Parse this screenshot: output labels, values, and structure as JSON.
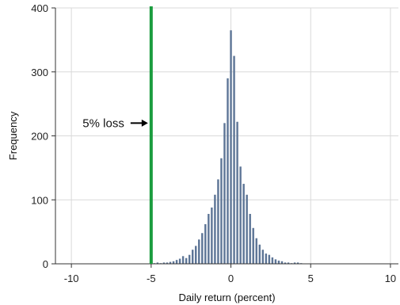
{
  "chart_data": {
    "type": "bar",
    "xlabel": "Daily return (percent)",
    "ylabel": "Frequency",
    "xlim": [
      -11,
      10.5
    ],
    "ylim": [
      0,
      400
    ],
    "xticks": [
      -10,
      -5,
      0,
      5,
      10
    ],
    "yticks": [
      0,
      100,
      200,
      300,
      400
    ],
    "grid": true,
    "bin_width": 0.2,
    "series": [
      {
        "x": [
          -4.8,
          -4.6,
          -4.4,
          -4.2,
          -4.0,
          -3.8,
          -3.6,
          -3.4,
          -3.2,
          -3.0,
          -2.8,
          -2.6,
          -2.4,
          -2.2,
          -2.0,
          -1.8,
          -1.6,
          -1.4,
          -1.2,
          -1.0,
          -0.8,
          -0.6,
          -0.4,
          -0.2,
          0.0,
          0.2,
          0.4,
          0.6,
          0.8,
          1.0,
          1.2,
          1.4,
          1.6,
          1.8,
          2.0,
          2.2,
          2.4,
          2.6,
          2.8,
          3.0,
          3.2,
          3.4,
          3.6,
          3.8,
          4.0,
          4.2,
          4.4,
          4.6
        ],
        "values": [
          1,
          2,
          1,
          2,
          2,
          3,
          4,
          6,
          8,
          12,
          9,
          14,
          22,
          28,
          38,
          48,
          62,
          78,
          88,
          108,
          132,
          165,
          220,
          290,
          365,
          325,
          222,
          152,
          125,
          108,
          78,
          56,
          40,
          30,
          22,
          16,
          14,
          10,
          7,
          5,
          4,
          2,
          2,
          1,
          2,
          2,
          1,
          0
        ]
      }
    ],
    "reference_line": {
      "x": -5,
      "color": "#1a9c3e"
    },
    "annotation": {
      "text": "5% loss",
      "x": -5,
      "y": 220
    },
    "colors": {
      "bars": "#5d7596",
      "grid": "#d9d9d9"
    }
  }
}
